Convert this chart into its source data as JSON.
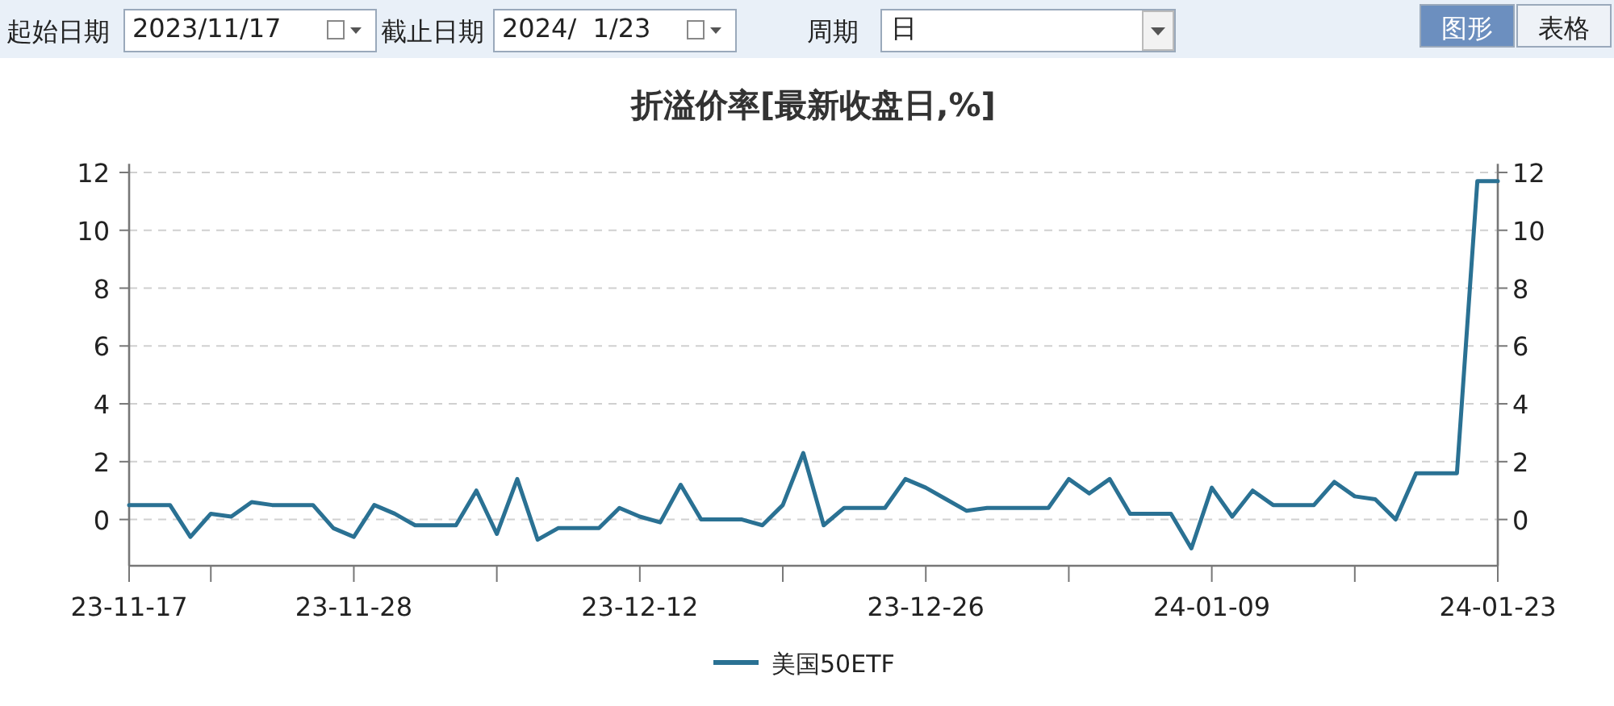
{
  "chart_data": {
    "type": "line",
    "title": "折溢价率[最新收盘日,%]",
    "annotations": [
      "起始日期",
      "2023/11/17",
      "截止日期",
      "2024/  1/23",
      "周期",
      "日",
      "图形",
      "表格"
    ],
    "x": [
      "2023-11-17",
      "2023-11-18",
      "2023-11-19",
      "2023-11-20",
      "2023-11-21",
      "2023-11-22",
      "2023-11-23",
      "2023-11-24",
      "2023-11-25",
      "2023-11-26",
      "2023-11-27",
      "2023-11-28",
      "2023-11-29",
      "2023-11-30",
      "2023-12-01",
      "2023-12-02",
      "2023-12-03",
      "2023-12-04",
      "2023-12-05",
      "2023-12-06",
      "2023-12-07",
      "2023-12-08",
      "2023-12-09",
      "2023-12-10",
      "2023-12-11",
      "2023-12-12",
      "2023-12-13",
      "2023-12-14",
      "2023-12-15",
      "2023-12-16",
      "2023-12-17",
      "2023-12-18",
      "2023-12-19",
      "2023-12-20",
      "2023-12-21",
      "2023-12-22",
      "2023-12-23",
      "2023-12-24",
      "2023-12-25",
      "2023-12-26",
      "2023-12-27",
      "2023-12-28",
      "2023-12-29",
      "2023-12-30",
      "2023-12-31",
      "2024-01-01",
      "2024-01-02",
      "2024-01-03",
      "2024-01-04",
      "2024-01-05",
      "2024-01-06",
      "2024-01-07",
      "2024-01-08",
      "2024-01-09",
      "2024-01-10",
      "2024-01-11",
      "2024-01-12",
      "2024-01-13",
      "2024-01-14",
      "2024-01-15",
      "2024-01-16",
      "2024-01-17",
      "2024-01-18",
      "2024-01-19",
      "2024-01-20",
      "2024-01-21",
      "2024-01-22",
      "2024-01-23"
    ],
    "series": [
      {
        "name": "美国50ETF",
        "color": "#2a7193",
        "values": [
          0.5,
          0.5,
          0.5,
          -0.6,
          0.2,
          0.1,
          0.6,
          0.5,
          0.5,
          0.5,
          -0.3,
          -0.6,
          0.5,
          0.2,
          -0.2,
          -0.2,
          -0.2,
          1.0,
          -0.5,
          1.4,
          -0.7,
          -0.3,
          -0.3,
          -0.3,
          0.4,
          0.1,
          -0.1,
          1.2,
          0.0,
          0.0,
          0.0,
          -0.2,
          0.5,
          2.3,
          -0.2,
          0.4,
          0.4,
          0.4,
          1.4,
          1.1,
          0.7,
          0.3,
          0.4,
          0.4,
          0.4,
          0.4,
          1.4,
          0.9,
          1.4,
          0.2,
          0.2,
          0.2,
          -1.0,
          1.1,
          0.1,
          1.0,
          0.5,
          0.5,
          0.5,
          1.3,
          0.8,
          0.7,
          0.0,
          1.6,
          1.6,
          1.6,
          11.7,
          11.7
        ]
      }
    ],
    "xlim": [
      "2023-11-17",
      "2024-01-23"
    ],
    "xticks": [
      {
        "value": "2023-11-17",
        "label": "23-11-17"
      },
      {
        "value": "2023-11-21",
        "label": null
      },
      {
        "value": "2023-11-28",
        "label": "23-11-28"
      },
      {
        "value": "2023-12-05",
        "label": null
      },
      {
        "value": "2023-12-12",
        "label": "23-12-12"
      },
      {
        "value": "2023-12-19",
        "label": null
      },
      {
        "value": "2023-12-26",
        "label": "23-12-26"
      },
      {
        "value": "2024-01-02",
        "label": null
      },
      {
        "value": "2024-01-09",
        "label": "24-01-09"
      },
      {
        "value": "2024-01-16",
        "label": null
      },
      {
        "value": "2024-01-23",
        "label": "24-01-23"
      }
    ],
    "ylim": [
      -1.6,
      12.3
    ],
    "yticks": [
      0,
      2,
      4,
      6,
      8,
      10,
      12
    ],
    "y2lim": [
      -1.6,
      12.3
    ],
    "y2ticks": [
      0,
      2,
      4,
      6,
      8,
      10,
      12
    ],
    "grid": "y",
    "legend": "bottom",
    "marker": "none",
    "line_style": "solid"
  }
}
